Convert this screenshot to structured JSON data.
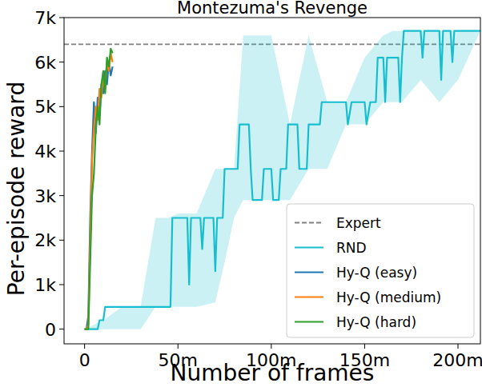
{
  "chart_data": {
    "type": "line",
    "title": "Montezuma's Revenge",
    "x_label": "Number of frames",
    "y_label": "Per-episode reward",
    "xlim": [
      -11,
      212
    ],
    "ylim": [
      -330,
      7000
    ],
    "xticks": [
      {
        "value": 0,
        "label": "0"
      },
      {
        "value": 50,
        "label": "50m"
      },
      {
        "value": 100,
        "label": "100m"
      },
      {
        "value": 150,
        "label": "150m"
      },
      {
        "value": 200,
        "label": "200m"
      }
    ],
    "yticks": [
      0,
      {
        "value": 1000,
        "label": "1k"
      },
      {
        "value": 2000,
        "label": "2k"
      },
      {
        "value": 3000,
        "label": "3k"
      },
      {
        "value": 4000,
        "label": "4k"
      },
      {
        "value": 5000,
        "label": "5k"
      },
      {
        "value": 6000,
        "label": "6k"
      },
      {
        "value": 7000,
        "label": "7k"
      }
    ],
    "grid": false,
    "legend": "lower right",
    "series": [
      {
        "name": "Expert",
        "type": "hline",
        "color": "#808080",
        "line_style": "dashed",
        "values": [
          6400
        ]
      },
      {
        "name": "RND",
        "color": "#17becf",
        "x": [
          0,
          5,
          7,
          8,
          10,
          11,
          20,
          38,
          40,
          46,
          47,
          55,
          56,
          57,
          62,
          63,
          64,
          69,
          70,
          71,
          74,
          75,
          82,
          83,
          88,
          89,
          90,
          95,
          96,
          100,
          101,
          104,
          105,
          108,
          109,
          114,
          115,
          119,
          120,
          126,
          127,
          140,
          141,
          143,
          150,
          151,
          153,
          156,
          157,
          160,
          161,
          162,
          168,
          169,
          170,
          171,
          180,
          181,
          182,
          190,
          191,
          192,
          196,
          197,
          198,
          212
        ],
        "values": [
          0,
          0,
          0,
          200,
          200,
          500,
          500,
          500,
          500,
          500,
          2500,
          2500,
          1000,
          2500,
          2500,
          1800,
          2500,
          2500,
          1300,
          2500,
          2500,
          3600,
          3600,
          4600,
          4600,
          3600,
          2900,
          2900,
          3600,
          3600,
          2900,
          2900,
          3600,
          3600,
          4600,
          4600,
          3600,
          3600,
          4600,
          4600,
          5100,
          5100,
          4600,
          5100,
          5100,
          4600,
          5100,
          5100,
          6100,
          6100,
          5100,
          6100,
          6100,
          5100,
          6100,
          6700,
          6700,
          6100,
          6700,
          6700,
          5600,
          6700,
          6700,
          6000,
          6700,
          6700
        ],
        "band": {
          "x": [
            0,
            10,
            20,
            30,
            38,
            45,
            50,
            60,
            70,
            75,
            80,
            85,
            90,
            100,
            110,
            120,
            130,
            140,
            150,
            160,
            165,
            170,
            180,
            190,
            200,
            212
          ],
          "low": [
            0,
            0,
            0,
            0,
            500,
            500,
            500,
            500,
            600,
            1500,
            2500,
            2900,
            2900,
            2900,
            2900,
            3600,
            3600,
            4600,
            4600,
            5100,
            5100,
            5100,
            5600,
            5100,
            5600,
            6700
          ],
          "high": [
            0,
            200,
            500,
            500,
            2500,
            2500,
            2600,
            2600,
            3600,
            3600,
            3600,
            6600,
            6600,
            6600,
            4600,
            6600,
            5100,
            5100,
            6100,
            6600,
            6700,
            6700,
            6700,
            6700,
            6700,
            6700
          ]
        }
      },
      {
        "name": "Hy-Q (easy)",
        "color": "#1f77b4",
        "x": [
          0,
          1,
          2,
          3,
          4,
          5,
          6,
          7,
          8,
          9,
          10,
          11,
          12,
          13,
          14,
          15
        ],
        "values": [
          0,
          0,
          300,
          2500,
          4000,
          5100,
          4400,
          5200,
          4800,
          5500,
          5300,
          5800,
          5500,
          6000,
          5700,
          5900
        ]
      },
      {
        "name": "Hy-Q (medium)",
        "color": "#ff7f0e",
        "x": [
          0,
          1,
          2,
          3,
          4,
          5,
          6,
          7,
          8,
          9,
          10,
          11,
          12,
          13,
          14,
          15
        ],
        "values": [
          0,
          0,
          100,
          2000,
          3800,
          4500,
          5000,
          4700,
          5400,
          5200,
          5700,
          5400,
          6000,
          5800,
          6200,
          6000
        ]
      },
      {
        "name": "Hy-Q (hard)",
        "color": "#2ca02c",
        "x": [
          0,
          1,
          2,
          3,
          4,
          5,
          6,
          7,
          8,
          9,
          10,
          11,
          12,
          13,
          14,
          15
        ],
        "values": [
          0,
          0,
          0,
          1500,
          3000,
          3500,
          4500,
          5000,
          4600,
          5500,
          5800,
          5300,
          6100,
          5900,
          6300,
          6200
        ]
      }
    ]
  }
}
